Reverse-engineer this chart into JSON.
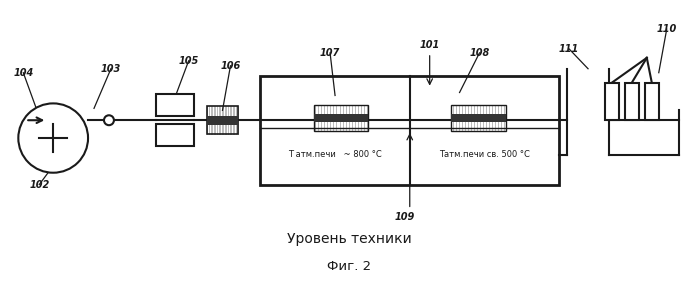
{
  "title": "Уровень техники",
  "subtitle": "Фиг. 2",
  "bg_color": "#ffffff",
  "line_color": "#1a1a1a",
  "text1": "Т атм.печи   ~ 800 °С",
  "text2": "Татм.печи св. 500 °С"
}
